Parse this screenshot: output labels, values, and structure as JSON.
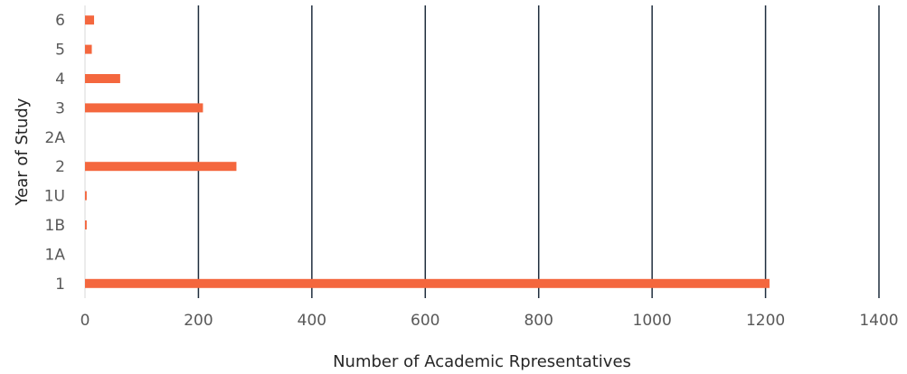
{
  "chart_data": {
    "type": "bar",
    "orientation": "horizontal",
    "categories": [
      "1",
      "1A",
      "1B",
      "1U",
      "2",
      "2A",
      "3",
      "4",
      "5",
      "6"
    ],
    "values": [
      1207,
      0,
      3,
      3,
      267,
      0,
      208,
      62,
      12,
      16
    ],
    "xlabel": "Number  of Academic Rpresentatives",
    "ylabel": "Year of Study",
    "xlim": [
      0,
      1400
    ],
    "xticks": [
      "0",
      "200",
      "400",
      "600",
      "800",
      "1000",
      "1200",
      "1400"
    ],
    "grid": "vertical",
    "legend": "none",
    "colors": {
      "bar": "#F4673E",
      "grid": "#1F2D3D",
      "baseline": "#D9D9D9"
    }
  }
}
